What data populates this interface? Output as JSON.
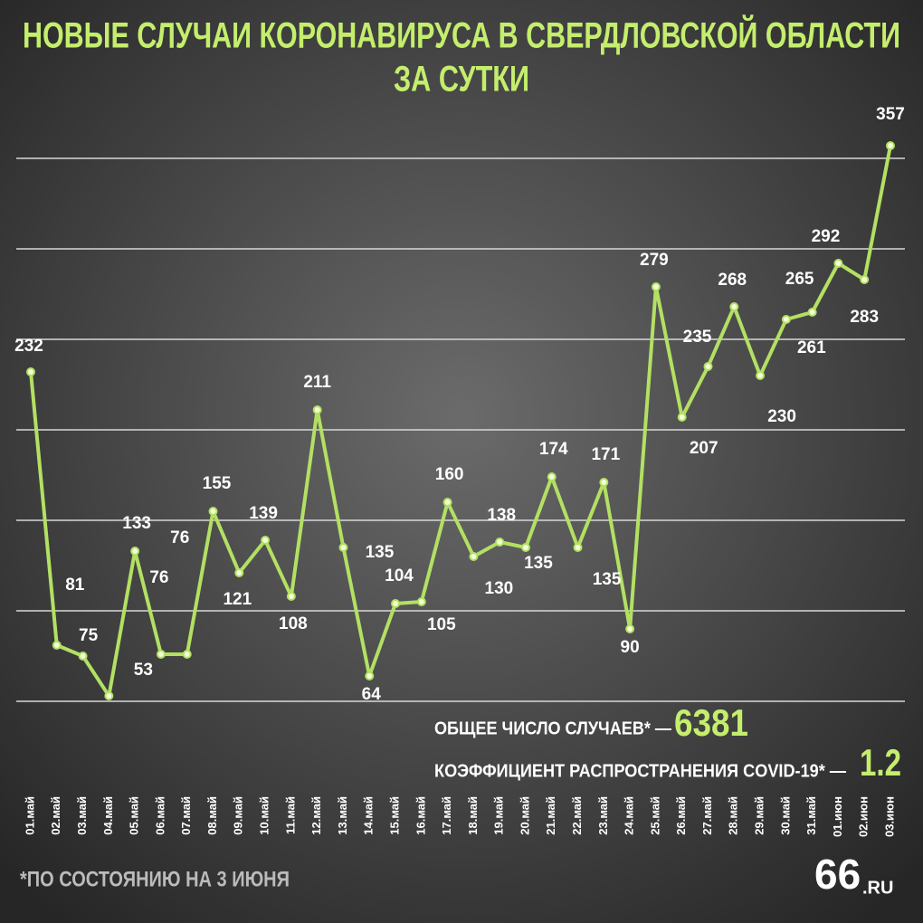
{
  "chart_data": {
    "type": "line",
    "title": [
      "НОВЫЕ СЛУЧАИ КОРОНАВИРУСА В СВЕРДЛОВСКОЙ ОБЛАСТИ",
      "ЗА СУТКИ"
    ],
    "categories": [
      "01.май",
      "02.май",
      "03.май",
      "04.май",
      "05.май",
      "06.май",
      "07.май",
      "08.май",
      "09.май",
      "10.май",
      "11.май",
      "12.май",
      "13.май",
      "14.май",
      "15.май",
      "16.май",
      "17.май",
      "18.май",
      "19.май",
      "20.май",
      "21.май",
      "22.май",
      "23.май",
      "24.май",
      "25.май",
      "26.май",
      "27.май",
      "28.май",
      "29.май",
      "30.май",
      "31.май",
      "01.июн",
      "02.июн",
      "03.июн"
    ],
    "values": [
      232,
      81,
      75,
      53,
      133,
      76,
      76,
      155,
      121,
      139,
      108,
      211,
      135,
      64,
      104,
      105,
      160,
      130,
      138,
      135,
      174,
      135,
      171,
      90,
      279,
      207,
      235,
      268,
      230,
      261,
      265,
      292,
      283,
      357
    ],
    "color": "#b3e063",
    "ylim": [
      50,
      350
    ],
    "yticks": [
      50,
      100,
      150,
      200,
      250,
      300,
      350
    ],
    "grid": true,
    "annotations": {
      "total_label": "ОБЩЕЕ ЧИСЛО СЛУЧАЕВ* —",
      "total_value": "6381",
      "rate_label": "КОЭФФИЦИЕНТ РАСПРОСТРАНЕНИЯ COVID-19* —",
      "rate_value": "1.2",
      "footnote": "*ПО СОСТОЯНИЮ НА 3  ИЮНЯ",
      "logo_number": "66",
      "logo_suffix": ".RU"
    }
  }
}
